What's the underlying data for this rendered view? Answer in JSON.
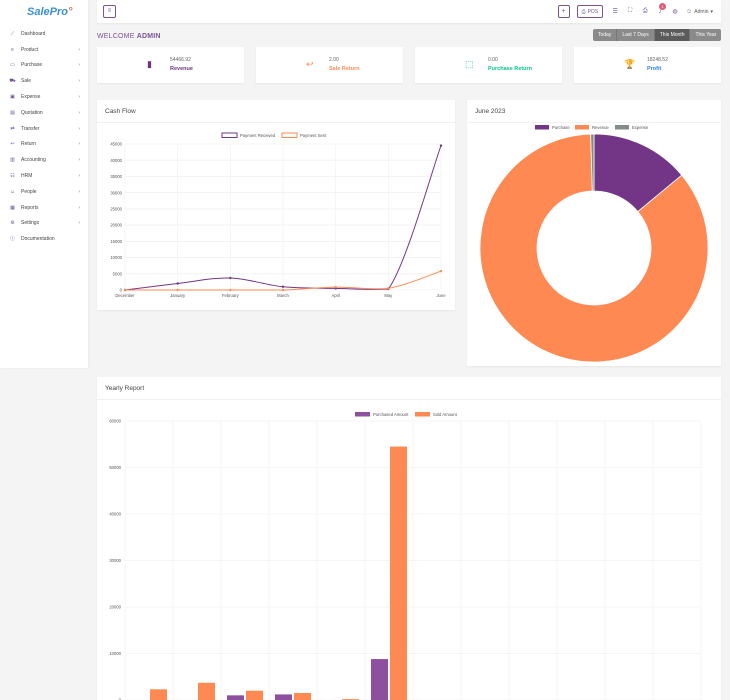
{
  "brand": {
    "name": "SalePro"
  },
  "sidebar": {
    "items": [
      {
        "label": "Dashboard",
        "icon": "dashboard-icon",
        "glyph": "⟋",
        "has_children": false
      },
      {
        "label": "Product",
        "icon": "product-icon",
        "glyph": "≡",
        "has_children": true
      },
      {
        "label": "Purchase",
        "icon": "card-icon",
        "glyph": "▭",
        "has_children": true
      },
      {
        "label": "Sale",
        "icon": "cart-icon",
        "glyph": "⛟",
        "has_children": true
      },
      {
        "label": "Expense",
        "icon": "wallet-icon",
        "glyph": "▣",
        "has_children": true
      },
      {
        "label": "Quotation",
        "icon": "document-icon",
        "glyph": "▤",
        "has_children": true
      },
      {
        "label": "Transfer",
        "icon": "transfer-icon",
        "glyph": "⇄",
        "has_children": true
      },
      {
        "label": "Return",
        "icon": "return-icon",
        "glyph": "↩",
        "has_children": true
      },
      {
        "label": "Accounting",
        "icon": "briefcase-icon",
        "glyph": "▥",
        "has_children": true
      },
      {
        "label": "HRM",
        "icon": "users-icon",
        "glyph": "☷",
        "has_children": true
      },
      {
        "label": "People",
        "icon": "person-icon",
        "glyph": "☺",
        "has_children": true
      },
      {
        "label": "Reports",
        "icon": "report-icon",
        "glyph": "▦",
        "has_children": true
      },
      {
        "label": "Settings",
        "icon": "gear-icon",
        "glyph": "⚙",
        "has_children": true
      },
      {
        "label": "Documentation",
        "icon": "info-icon",
        "glyph": "ⓘ",
        "has_children": false
      }
    ]
  },
  "header": {
    "menu_glyph": "≡",
    "add_glyph": "+",
    "pos_label": "POS",
    "notification_count": "1",
    "user_label": "Admin"
  },
  "welcome": {
    "prefix": "WELCOME",
    "name": "ADMIN"
  },
  "filters": [
    {
      "label": "Today",
      "active": false
    },
    {
      "label": "Last 7 Days",
      "active": false
    },
    {
      "label": "This Month",
      "active": true
    },
    {
      "label": "This Year",
      "active": false
    }
  ],
  "stats": [
    {
      "value": "54466.92",
      "label": "Revenue",
      "color": "#6c3483",
      "icon": "bar-chart-icon",
      "glyph": "▮"
    },
    {
      "value": "2.00",
      "label": "Sale Return",
      "color": "#ff8952",
      "icon": "return-arrow-icon",
      "glyph": "↩"
    },
    {
      "value": "0.00",
      "label": "Purchase Return",
      "color": "#00c689",
      "icon": "truck-return-icon",
      "glyph": "⬚"
    },
    {
      "value": "18248.52",
      "label": "Profit",
      "color": "#297ff9",
      "icon": "trophy-icon",
      "glyph": "🏆"
    }
  ],
  "panels": {
    "cash_flow_title": "Cash Flow",
    "donut_title": "June 2023",
    "yearly_title": "Yearly Report"
  },
  "chart_data": [
    {
      "type": "line",
      "categories": [
        "December",
        "January",
        "February",
        "March",
        "April",
        "May",
        "June"
      ],
      "series": [
        {
          "name": "Payment Received",
          "color": "#733686",
          "values": [
            0,
            2000,
            3700,
            1000,
            500,
            300,
            44500
          ]
        },
        {
          "name": "Payment Sent",
          "color": "#ff8952",
          "values": [
            0,
            0,
            0,
            0,
            900,
            500,
            5800
          ]
        }
      ],
      "yticks": [
        0,
        5000,
        10000,
        15000,
        20000,
        25000,
        30000,
        35000,
        40000,
        45000
      ],
      "ylim": [
        0,
        45000
      ],
      "legend": "top"
    },
    {
      "type": "pie",
      "donut": true,
      "labels": [
        "Purchase",
        "Revenue",
        "Expense"
      ],
      "values": [
        8900,
        54466.92,
        300
      ],
      "colors": [
        "#733686",
        "#ff8952",
        "#858c85"
      ],
      "legend": "top"
    },
    {
      "type": "bar",
      "series": [
        {
          "name": "Purchased Amount",
          "color": "#8d4f9e",
          "values": [
            0,
            0,
            1000,
            1200,
            0,
            8800,
            0,
            0,
            0,
            0,
            0,
            0
          ]
        },
        {
          "name": "Sold Amount",
          "color": "#ff8952",
          "values": [
            2300,
            3700,
            2000,
            1500,
            200,
            54500,
            0,
            0,
            0,
            0,
            0,
            0
          ]
        }
      ],
      "yticks": [
        0,
        10000,
        20000,
        30000,
        40000,
        50000,
        60000
      ],
      "ylim": [
        0,
        60000
      ],
      "legend": "top"
    }
  ]
}
